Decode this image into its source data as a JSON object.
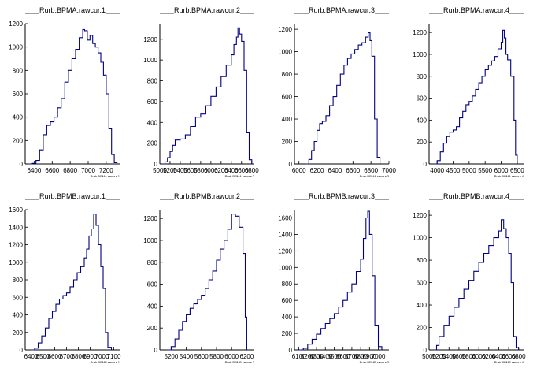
{
  "colors": {
    "line": "#000080",
    "axis": "#000000",
    "background": "#ffffff"
  },
  "chart_data": [
    {
      "type": "line",
      "title": "Rurb.BPMA.rawcur.1",
      "xlabel": "Rurb.BPMA.rawcur.1",
      "xlim": [
        6300,
        7350
      ],
      "ylim": [
        0,
        1200
      ],
      "xticks": [
        6400,
        6600,
        6800,
        7000,
        7200
      ],
      "yticks": [
        0,
        200,
        400,
        600,
        800,
        1000,
        1200
      ],
      "x": [
        6330,
        6380,
        6420,
        6460,
        6500,
        6540,
        6580,
        6620,
        6660,
        6700,
        6740,
        6780,
        6820,
        6860,
        6900,
        6940,
        6960,
        6990,
        7020,
        7050,
        7080,
        7110,
        7140,
        7170,
        7200,
        7230,
        7260,
        7290,
        7320
      ],
      "y": [
        0,
        5,
        30,
        120,
        250,
        330,
        360,
        400,
        480,
        560,
        700,
        800,
        900,
        980,
        1080,
        1150,
        1140,
        1060,
        1100,
        1030,
        1000,
        950,
        870,
        760,
        600,
        300,
        80,
        10,
        0
      ]
    },
    {
      "type": "line",
      "title": "Rurb.BPMA.rawcur.2",
      "xlabel": "Rurb.BPMA.rawcur.2",
      "xlim": [
        5000,
        6850
      ],
      "ylim": [
        0,
        1350
      ],
      "xticks": [
        5000,
        5200,
        5400,
        5600,
        5800,
        6000,
        6200,
        6400,
        6600,
        6800
      ],
      "yticks": [
        0,
        200,
        400,
        600,
        800,
        1000,
        1200
      ],
      "x": [
        5050,
        5100,
        5150,
        5200,
        5250,
        5300,
        5400,
        5500,
        5600,
        5700,
        5800,
        5900,
        6000,
        6100,
        6200,
        6300,
        6400,
        6450,
        6500,
        6530,
        6560,
        6600,
        6650,
        6700,
        6750,
        6800
      ],
      "y": [
        0,
        20,
        60,
        120,
        180,
        230,
        240,
        280,
        360,
        450,
        480,
        560,
        650,
        740,
        840,
        950,
        1050,
        1150,
        1220,
        1310,
        1250,
        1180,
        900,
        300,
        40,
        0
      ]
    },
    {
      "type": "line",
      "title": "Rurb.BPMA.rawcur.3",
      "xlabel": "Rurb.BPMA.rawcur.3",
      "xlim": [
        5950,
        7000
      ],
      "ylim": [
        0,
        1250
      ],
      "xticks": [
        6000,
        6200,
        6400,
        6600,
        6800,
        7000
      ],
      "yticks": [
        0,
        200,
        400,
        600,
        800,
        1000,
        1200
      ],
      "x": [
        6080,
        6110,
        6140,
        6170,
        6200,
        6230,
        6260,
        6300,
        6340,
        6380,
        6420,
        6460,
        6500,
        6540,
        6580,
        6620,
        6660,
        6700,
        6740,
        6770,
        6790,
        6810,
        6840,
        6870,
        6900
      ],
      "y": [
        0,
        40,
        120,
        200,
        300,
        360,
        380,
        430,
        520,
        600,
        700,
        800,
        880,
        940,
        980,
        1020,
        1060,
        1080,
        1130,
        1170,
        1100,
        960,
        400,
        60,
        0
      ]
    },
    {
      "type": "line",
      "title": "Rurb.BPMA.rawcur.4",
      "xlabel": "Rurb.BPMA.rawcur.4",
      "xlim": [
        3750,
        6700
      ],
      "ylim": [
        0,
        1280
      ],
      "xticks": [
        4000,
        4500,
        5000,
        5500,
        6000,
        6500
      ],
      "yticks": [
        0,
        200,
        400,
        600,
        800,
        1000,
        1200
      ],
      "x": [
        3950,
        4000,
        4100,
        4200,
        4300,
        4400,
        4500,
        4600,
        4700,
        4800,
        4900,
        5000,
        5100,
        5200,
        5300,
        5400,
        5500,
        5600,
        5700,
        5800,
        5900,
        6000,
        6050,
        6100,
        6150,
        6200,
        6300,
        6400,
        6450,
        6500
      ],
      "y": [
        0,
        30,
        110,
        190,
        250,
        290,
        310,
        340,
        420,
        480,
        540,
        570,
        620,
        680,
        740,
        800,
        860,
        900,
        940,
        980,
        1050,
        1110,
        1220,
        1150,
        1000,
        950,
        800,
        400,
        80,
        0
      ]
    },
    {
      "type": "line",
      "title": "Rurb.BPMB.rawcur.1",
      "xlabel": "Rurb.BPMB.rawcur.1",
      "xlim": [
        6350,
        7150
      ],
      "ylim": [
        0,
        1600
      ],
      "xticks": [
        6400,
        6500,
        6600,
        6700,
        6800,
        6900,
        7000,
        7100
      ],
      "yticks": [
        0,
        200,
        400,
        600,
        800,
        1000,
        1200,
        1400,
        1600
      ],
      "x": [
        6400,
        6430,
        6460,
        6490,
        6520,
        6550,
        6580,
        6610,
        6640,
        6670,
        6700,
        6730,
        6760,
        6790,
        6820,
        6850,
        6870,
        6890,
        6910,
        6930,
        6950,
        6970,
        6990,
        7010,
        7030,
        7050,
        7080
      ],
      "y": [
        0,
        20,
        80,
        160,
        250,
        360,
        440,
        520,
        580,
        620,
        650,
        720,
        800,
        880,
        950,
        1050,
        1150,
        1300,
        1380,
        1550,
        1420,
        1200,
        950,
        700,
        200,
        30,
        0
      ]
    },
    {
      "type": "line",
      "title": "Rurb.BPMB.rawcur.2",
      "xlabel": "Rurb.BPMB.rawcur.2",
      "xlim": [
        5050,
        6300
      ],
      "ylim": [
        0,
        1280
      ],
      "xticks": [
        5200,
        5400,
        5600,
        5800,
        6000,
        6200
      ],
      "yticks": [
        0,
        200,
        400,
        600,
        800,
        1000,
        1200
      ],
      "x": [
        5150,
        5200,
        5250,
        5300,
        5350,
        5400,
        5450,
        5500,
        5550,
        5600,
        5650,
        5700,
        5750,
        5800,
        5850,
        5900,
        5950,
        6000,
        6050,
        6100,
        6150,
        6180,
        6200
      ],
      "y": [
        0,
        30,
        100,
        180,
        260,
        320,
        380,
        420,
        460,
        500,
        560,
        640,
        720,
        820,
        920,
        1000,
        1100,
        1240,
        1220,
        1120,
        880,
        300,
        0
      ]
    },
    {
      "type": "line",
      "title": "Rurb.BPMB.rawcur.3",
      "xlabel": "Rurb.BPMB.rawcur.3",
      "xlim": [
        6050,
        7120
      ],
      "ylim": [
        0,
        1700
      ],
      "xticks": [
        6100,
        6200,
        6300,
        6400,
        6500,
        6600,
        6700,
        6800,
        6900,
        7000
      ],
      "yticks": [
        0,
        200,
        400,
        600,
        800,
        1000,
        1200,
        1400,
        1600
      ],
      "x": [
        6100,
        6150,
        6200,
        6250,
        6300,
        6350,
        6400,
        6450,
        6500,
        6550,
        6600,
        6650,
        6700,
        6750,
        6800,
        6830,
        6860,
        6880,
        6900,
        6930,
        6960,
        7000,
        7040
      ],
      "y": [
        0,
        20,
        70,
        130,
        190,
        260,
        320,
        380,
        440,
        520,
        600,
        700,
        800,
        950,
        1100,
        1350,
        1600,
        1680,
        1400,
        900,
        300,
        40,
        0
      ]
    },
    {
      "type": "line",
      "title": "Rurb.BPMB.rawcur.4",
      "xlabel": "Rurb.BPMB.rawcur.4",
      "xlim": [
        5000,
        6900
      ],
      "ylim": [
        0,
        1250
      ],
      "xticks": [
        5000,
        5200,
        5400,
        5600,
        5800,
        6000,
        6200,
        6400,
        6600,
        6800
      ],
      "yticks": [
        0,
        200,
        400,
        600,
        800,
        1000,
        1200
      ],
      "x": [
        5100,
        5150,
        5200,
        5300,
        5400,
        5500,
        5600,
        5700,
        5800,
        5900,
        6000,
        6100,
        6200,
        6300,
        6400,
        6450,
        6500,
        6550,
        6600,
        6650,
        6700,
        6750,
        6800
      ],
      "y": [
        0,
        40,
        120,
        220,
        300,
        380,
        460,
        540,
        620,
        700,
        780,
        860,
        930,
        1000,
        1060,
        1160,
        1080,
        1000,
        860,
        600,
        120,
        20,
        0
      ]
    }
  ]
}
